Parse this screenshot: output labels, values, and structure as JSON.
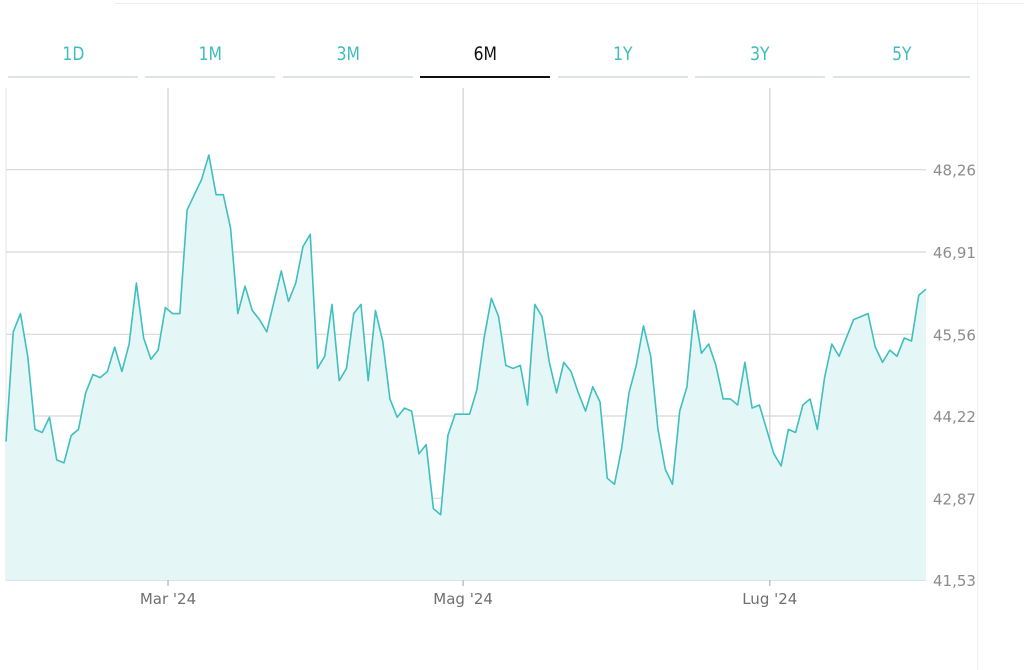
{
  "range_tabs": [
    {
      "label": "1D",
      "active": false
    },
    {
      "label": "1M",
      "active": false
    },
    {
      "label": "3M",
      "active": false
    },
    {
      "label": "6M",
      "active": true
    },
    {
      "label": "1Y",
      "active": false
    },
    {
      "label": "3Y",
      "active": false
    },
    {
      "label": "5Y",
      "active": false
    }
  ],
  "colors": {
    "line": "#3fbfbf",
    "fill": "#e5f6f6",
    "tab_inactive": "#3fbcbc",
    "tab_active": "#111111",
    "grid": "#d7d7d7"
  },
  "chart_data": {
    "type": "area",
    "xlabel": "",
    "ylabel": "",
    "ylim": [
      41.53,
      49.6
    ],
    "y_ticks": [
      "48,26",
      "46,91",
      "45,56",
      "44,22",
      "42,87",
      "41,53"
    ],
    "y_tick_values": [
      48.26,
      46.91,
      45.56,
      44.22,
      42.87,
      41.53
    ],
    "x_ticks": [
      {
        "label": "Mar '24",
        "x": 28
      },
      {
        "label": "Mag '24",
        "x": 79
      },
      {
        "label": "Lug '24",
        "x": 132
      }
    ],
    "x_range": [
      0,
      159
    ],
    "grid": true,
    "values": [
      43.8,
      45.6,
      45.9,
      45.2,
      44.0,
      43.95,
      44.2,
      43.5,
      43.45,
      43.9,
      44.0,
      44.6,
      44.9,
      44.85,
      44.95,
      45.35,
      44.95,
      45.4,
      46.4,
      45.5,
      45.15,
      45.3,
      46.0,
      45.9,
      45.9,
      47.6,
      47.85,
      48.1,
      48.5,
      47.85,
      47.85,
      47.3,
      45.9,
      46.35,
      45.95,
      45.8,
      45.6,
      46.1,
      46.6,
      46.1,
      46.4,
      47.0,
      47.2,
      45.0,
      45.2,
      46.05,
      44.8,
      45.0,
      45.9,
      46.05,
      44.8,
      45.95,
      45.45,
      44.5,
      44.2,
      44.35,
      44.3,
      43.6,
      43.75,
      42.7,
      42.6,
      43.9,
      44.25,
      44.25,
      44.25,
      44.65,
      45.5,
      46.15,
      45.85,
      45.05,
      45.0,
      45.05,
      44.4,
      46.05,
      45.85,
      45.1,
      44.6,
      45.1,
      44.95,
      44.6,
      44.3,
      44.7,
      44.45,
      43.2,
      43.1,
      43.7,
      44.6,
      45.05,
      45.7,
      45.2,
      44.0,
      43.35,
      43.1,
      44.3,
      44.7,
      45.95,
      45.25,
      45.4,
      45.05,
      44.5,
      44.5,
      44.4,
      45.1,
      44.35,
      44.4,
      44.0,
      43.6,
      43.4,
      44.0,
      43.95,
      44.4,
      44.5,
      44.0,
      44.85,
      45.4,
      45.2,
      45.5,
      45.8,
      45.85,
      45.9,
      45.35,
      45.1,
      45.3,
      45.2,
      45.5,
      45.45,
      46.2,
      46.3
    ]
  }
}
